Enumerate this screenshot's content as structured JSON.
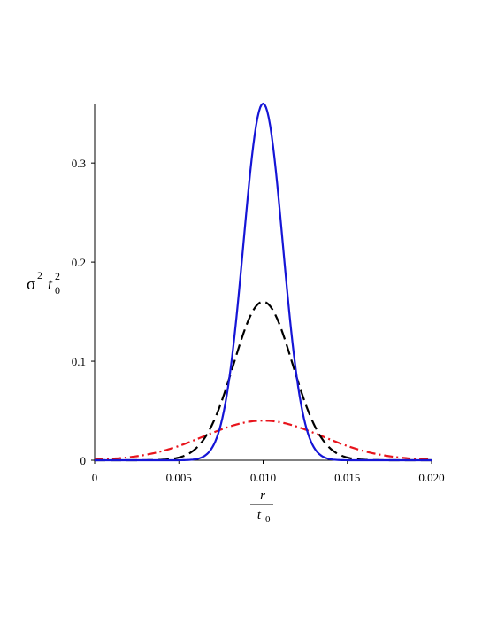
{
  "chart_data": {
    "type": "line",
    "xlabel": {
      "numerator": "r",
      "denominator_base": "t",
      "denominator_sub": "0"
    },
    "ylabel": {
      "sigma": "σ",
      "sigma_sup": "2",
      "t": "t",
      "t_sub": "0",
      "t_sup": "2"
    },
    "xlim": [
      0,
      0.02
    ],
    "ylim": [
      0,
      0.36
    ],
    "x_ticks": [
      0,
      0.005,
      0.01,
      0.015,
      0.02
    ],
    "x_tick_labels": [
      "0",
      "0.005",
      "0.010",
      "0.015",
      "0.020"
    ],
    "y_ticks": [
      0,
      0.1,
      0.2,
      0.3
    ],
    "y_tick_labels": [
      "0",
      "0.1",
      "0.2",
      "0.3"
    ],
    "grid": false,
    "series": [
      {
        "style": "dash-dot",
        "color": "#e8141c",
        "center": 0.01,
        "peak": 0.04,
        "sigma": 0.0035
      },
      {
        "style": "dashed",
        "color": "#000000",
        "center": 0.01,
        "peak": 0.16,
        "sigma": 0.00175
      },
      {
        "style": "solid",
        "color": "#1515d6",
        "center": 0.01,
        "peak": 0.36,
        "sigma": 0.00117
      }
    ]
  }
}
